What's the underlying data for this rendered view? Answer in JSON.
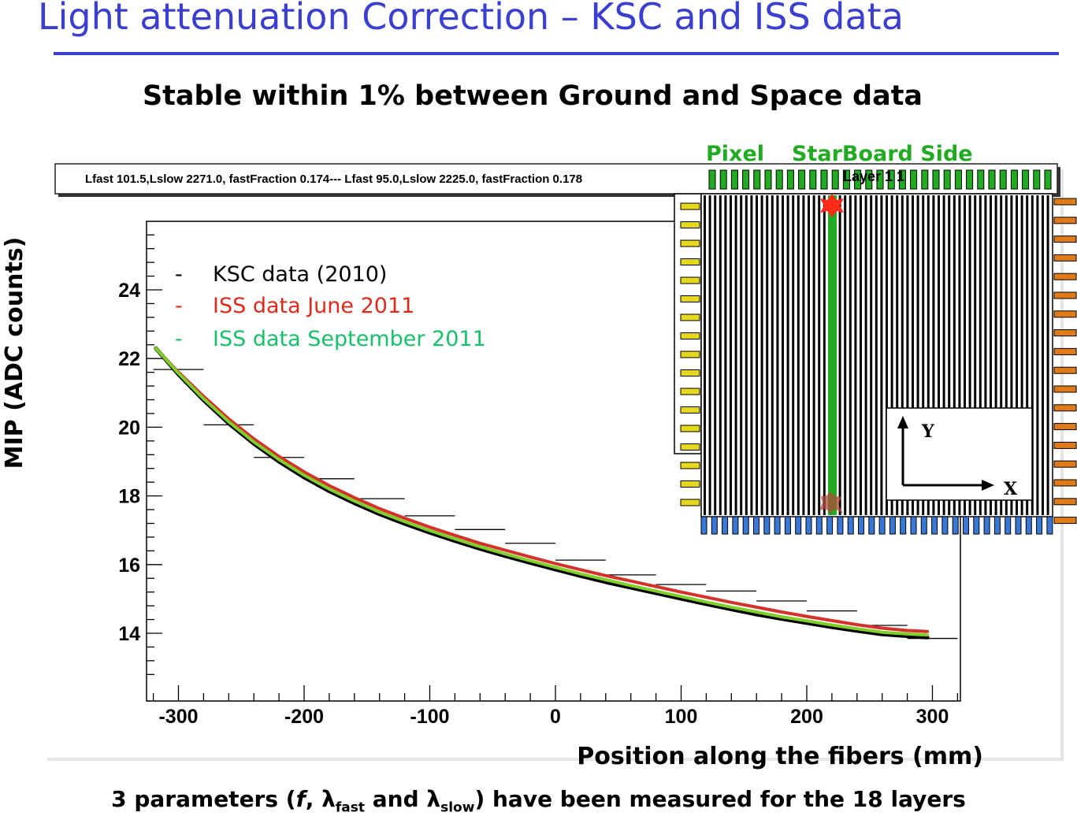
{
  "slide": {
    "title": "Light attenuation Correction – KSC and ISS data",
    "subtitle": "Stable within 1% between Ground and Space data",
    "footer_prefix": "3 parameters (",
    "footer_f": "f",
    "footer_sep": ", ",
    "footer_lambda1": "λ",
    "footer_sub1": "fast",
    "footer_and": " and ",
    "footer_lambda2": "λ",
    "footer_sub2": "slow",
    "footer_suffix": ") have been measured for the 18 layers"
  },
  "stats_box": {
    "text": "Lfast 101.5,Lslow 2271.0, fastFraction 0.174--- Lfast  95.0,Lslow 2225.0, fastFraction 0.178"
  },
  "inset": {
    "label_pixel": "Pixel",
    "label_side": "StarBoard Side",
    "hidden_text": "Layer  1  1",
    "axis_y": "Y",
    "axis_x": "X",
    "colors": {
      "top_pads": "#22aa22",
      "left_pads": "#e6d81e",
      "right_pads": "#e07b1a",
      "bottom_pads": "#3a78d8",
      "highlight_fiber": "#22aa22",
      "hit_marker": "#ff2a1a"
    }
  },
  "chart_data": {
    "type": "line",
    "xlabel": "Position along the fibers (mm)",
    "ylabel": "MIP (ADC counts)",
    "xlim": [
      -320,
      320
    ],
    "ylim": [
      12.6,
      26.0
    ],
    "xticks": [
      -300,
      -200,
      -100,
      0,
      100,
      200,
      300
    ],
    "yticks": [
      14,
      16,
      18,
      20,
      22,
      24
    ],
    "legend_position": "top-left",
    "series": [
      {
        "name": "KSC data (2010)",
        "color": "#000000",
        "x": [
          -318,
          -300,
          -280,
          -260,
          -240,
          -220,
          -200,
          -180,
          -160,
          -140,
          -120,
          -100,
          -80,
          -60,
          -40,
          -20,
          0,
          20,
          40,
          60,
          80,
          100,
          120,
          140,
          160,
          180,
          200,
          220,
          240,
          260,
          280,
          296
        ],
        "y": [
          22.3,
          21.54,
          20.79,
          20.11,
          19.52,
          19.0,
          18.54,
          18.14,
          17.79,
          17.47,
          17.19,
          16.93,
          16.69,
          16.46,
          16.25,
          16.05,
          15.86,
          15.67,
          15.49,
          15.33,
          15.17,
          15.01,
          14.85,
          14.7,
          14.55,
          14.42,
          14.3,
          14.18,
          14.07,
          13.97,
          13.92,
          13.88
        ]
      },
      {
        "name": "ISS data June 2011",
        "color": "#d6302a",
        "x": [
          -318,
          -300,
          -280,
          -260,
          -240,
          -220,
          -200,
          -180,
          -160,
          -140,
          -120,
          -100,
          -80,
          -60,
          -40,
          -20,
          0,
          20,
          40,
          60,
          80,
          100,
          120,
          140,
          160,
          180,
          200,
          220,
          240,
          260,
          280,
          296
        ],
        "y": [
          22.3,
          21.6,
          20.9,
          20.24,
          19.66,
          19.15,
          18.7,
          18.3,
          17.95,
          17.63,
          17.35,
          17.09,
          16.85,
          16.62,
          16.42,
          16.22,
          16.03,
          15.85,
          15.68,
          15.52,
          15.36,
          15.2,
          15.05,
          14.9,
          14.76,
          14.62,
          14.49,
          14.37,
          14.25,
          14.15,
          14.08,
          14.05
        ]
      },
      {
        "name": "ISS data September 2011",
        "color": "#7fcf2a",
        "x": [
          -318,
          -300,
          -280,
          -260,
          -240,
          -220,
          -200,
          -180,
          -160,
          -140,
          -120,
          -100,
          -80,
          -60,
          -40,
          -20,
          0,
          20,
          40,
          60,
          80,
          100,
          120,
          140,
          160,
          180,
          200,
          220,
          240,
          260,
          280,
          296
        ],
        "y": [
          22.3,
          21.57,
          20.83,
          20.16,
          19.57,
          19.06,
          18.6,
          18.2,
          17.85,
          17.53,
          17.25,
          16.99,
          16.75,
          16.52,
          16.31,
          16.11,
          15.92,
          15.73,
          15.56,
          15.39,
          15.23,
          15.07,
          14.91,
          14.76,
          14.62,
          14.48,
          14.36,
          14.24,
          14.13,
          14.03,
          13.98,
          13.95
        ]
      }
    ],
    "histogram": {
      "x": [
        -300,
        -260,
        -220,
        -180,
        -140,
        -100,
        -60,
        -20,
        20,
        60,
        100,
        140,
        180,
        220,
        260,
        300
      ],
      "y": [
        21.68,
        20.07,
        19.12,
        18.5,
        17.92,
        17.42,
        17.02,
        16.62,
        16.13,
        15.7,
        15.42,
        15.23,
        14.94,
        14.65,
        14.23,
        13.85
      ]
    },
    "legend_colors": [
      "#000000",
      "#dd2a1c",
      "#18c06a"
    ]
  }
}
